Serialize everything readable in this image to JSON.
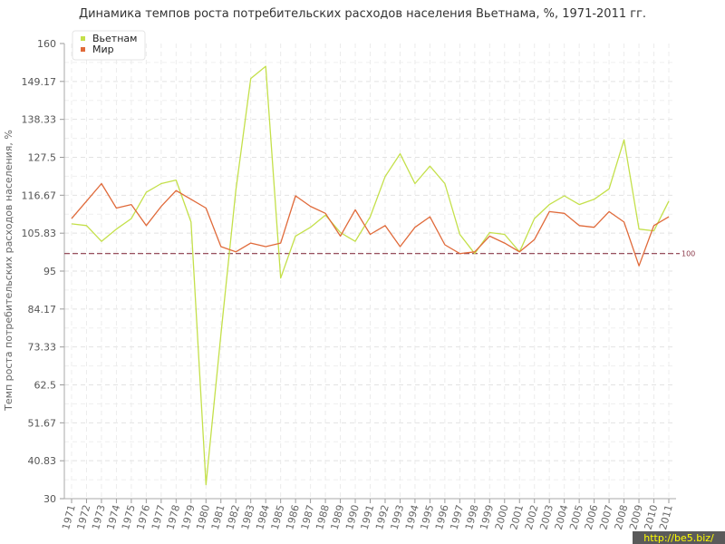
{
  "chart_data": {
    "type": "line",
    "title": "Динамика темпов роста потребительских расходов населения Вьетнама, %, 1971-2011 гг.",
    "ylabel": "Темп роста потребительских расходов населения, %",
    "xlabel": "",
    "ylim": [
      30,
      160
    ],
    "yticks": [
      "30",
      "40.83",
      "51.67",
      "62.5",
      "73.33",
      "84.17",
      "95",
      "105.83",
      "116.67",
      "127.5",
      "138.33",
      "149.17",
      "160"
    ],
    "x": [
      "1971",
      "1972",
      "1973",
      "1974",
      "1975",
      "1976",
      "1977",
      "1978",
      "1979",
      "1980",
      "1981",
      "1982",
      "1983",
      "1984",
      "1985",
      "1986",
      "1987",
      "1988",
      "1989",
      "1990",
      "1991",
      "1992",
      "1993",
      "1994",
      "1995",
      "1996",
      "1997",
      "1998",
      "1999",
      "2000",
      "2001",
      "2002",
      "2003",
      "2004",
      "2005",
      "2006",
      "2007",
      "2008",
      "2009",
      "2010",
      "2011"
    ],
    "series": [
      {
        "name": "Вьетнам",
        "color": "#c4e04a",
        "values": [
          108.5,
          108,
          103.5,
          107,
          110,
          117.5,
          120,
          121,
          109,
          34,
          77,
          118,
          150,
          153.5,
          93,
          105,
          107.5,
          111,
          106,
          103.5,
          110.5,
          122,
          128.5,
          120,
          125,
          120,
          105.5,
          100,
          106,
          105.5,
          100.5,
          110,
          114,
          116.5,
          114,
          115.5,
          118.5,
          132.5,
          107,
          106.5,
          115
        ]
      },
      {
        "name": "Мир",
        "color": "#e06a3a",
        "values": [
          110,
          115,
          120,
          113,
          114,
          108,
          113.5,
          118,
          115.5,
          113,
          102,
          100.5,
          103,
          102,
          103,
          116.5,
          113.5,
          111.5,
          105,
          112.5,
          105.5,
          108,
          102,
          107.5,
          110.5,
          102.5,
          100,
          100.5,
          105,
          103,
          100.5,
          104,
          112,
          111.5,
          108,
          107.5,
          112,
          109,
          96.5,
          108,
          110.5
        ]
      }
    ],
    "reference_line": {
      "value": 100,
      "label": "100",
      "color": "#8b3a4a"
    },
    "grid": true,
    "legend_position": "top-left"
  },
  "watermark": "http://be5.biz/"
}
